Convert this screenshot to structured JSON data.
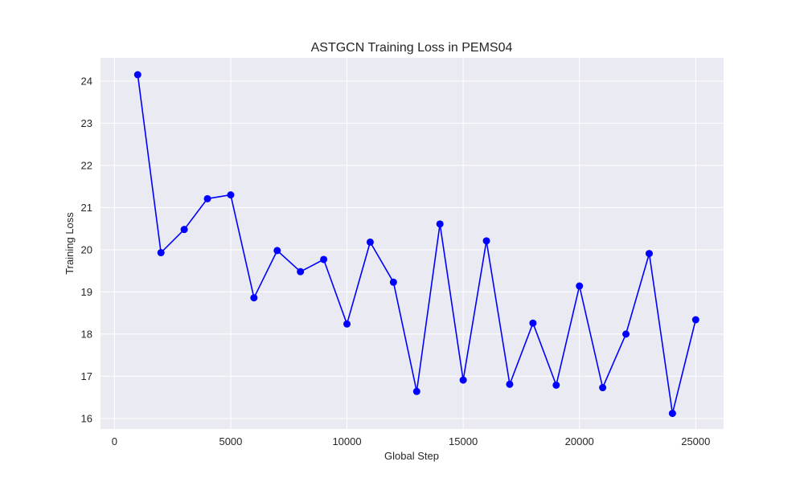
{
  "chart_data": {
    "type": "line",
    "title": "ASTGCN Training Loss in PEMS04",
    "xlabel": "Global Step",
    "ylabel": "Training Loss",
    "xlim": [
      -600,
      26200
    ],
    "ylim": [
      15.75,
      24.55
    ],
    "xticks": [
      0,
      5000,
      10000,
      15000,
      20000,
      25000
    ],
    "yticks": [
      16,
      17,
      18,
      19,
      20,
      21,
      22,
      23,
      24
    ],
    "grid": true,
    "background": "#eaeaf2",
    "grid_color": "#ffffff",
    "series": [
      {
        "color": "#0000ff",
        "marker": "circle",
        "x": [
          1000,
          2000,
          3000,
          4000,
          5000,
          6000,
          7000,
          8000,
          9000,
          10000,
          11000,
          12000,
          13000,
          14000,
          15000,
          16000,
          17000,
          18000,
          19000,
          20000,
          21000,
          22000,
          23000,
          24000,
          25000
        ],
        "y": [
          24.15,
          19.93,
          20.48,
          21.21,
          21.3,
          18.86,
          19.98,
          19.48,
          19.77,
          18.24,
          20.18,
          19.23,
          16.64,
          20.61,
          16.91,
          20.21,
          16.81,
          18.26,
          16.79,
          19.14,
          16.73,
          18.0,
          19.91,
          16.12,
          18.34
        ]
      }
    ]
  }
}
